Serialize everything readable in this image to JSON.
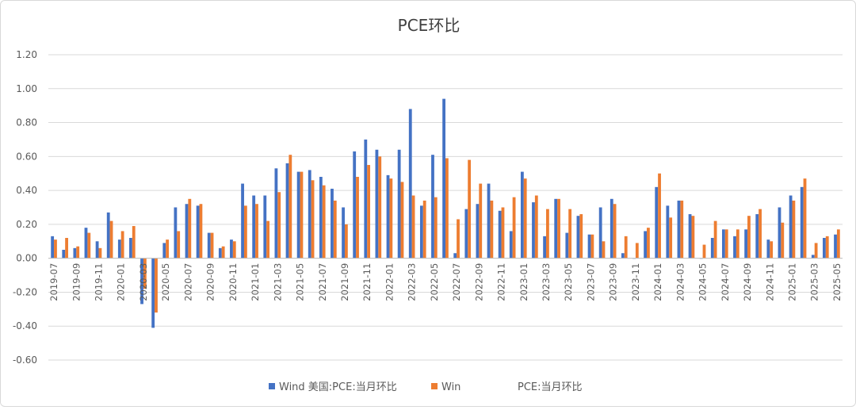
{
  "chart_data": {
    "type": "bar",
    "title": "PCE环比",
    "ylim": [
      -0.6,
      1.2
    ],
    "yticks": [
      "-0.60",
      "-0.40",
      "-0.20",
      "0.00",
      "0.20",
      "0.40",
      "0.60",
      "0.80",
      "1.00",
      "1.20"
    ],
    "grid": true,
    "legend_position": "bottom",
    "categories": [
      "2019-07",
      "2019-08",
      "2019-09",
      "2019-10",
      "2019-11",
      "2019-12",
      "2020-01",
      "2020-02",
      "2020-03",
      "2020-04",
      "2020-05",
      "2020-06",
      "2020-07",
      "2020-08",
      "2020-09",
      "2020-10",
      "2020-11",
      "2020-12",
      "2021-01",
      "2021-02",
      "2021-03",
      "2021-04",
      "2021-05",
      "2021-06",
      "2021-07",
      "2021-08",
      "2021-09",
      "2021-10",
      "2021-11",
      "2021-12",
      "2022-01",
      "2022-02",
      "2022-03",
      "2022-04",
      "2022-05",
      "2022-06",
      "2022-07",
      "2022-08",
      "2022-09",
      "2022-10",
      "2022-11",
      "2022-12",
      "2023-01",
      "2023-02",
      "2023-03",
      "2023-04",
      "2023-05",
      "2023-06",
      "2023-07",
      "2023-08",
      "2023-09",
      "2023-10",
      "2023-11",
      "2023-12",
      "2024-01",
      "2024-02",
      "2024-03",
      "2024-04",
      "2024-05",
      "2024-06",
      "2024-07",
      "2024-08",
      "2024-09",
      "2024-10",
      "2024-11",
      "2024-12",
      "2025-01",
      "2025-02",
      "2025-03",
      "2025-04",
      "2025-05"
    ],
    "xtick_labels": [
      "2019-07",
      "2019-09",
      "2019-11",
      "2020-01",
      "2020-03",
      "2020-05",
      "2020-07",
      "2020-09",
      "2020-11",
      "2021-01",
      "2021-03",
      "2021-05",
      "2021-07",
      "2021-09",
      "2021-11",
      "2022-01",
      "2022-03",
      "2022-05",
      "2022-07",
      "2022-09",
      "2022-11",
      "2023-01",
      "2023-03",
      "2023-05",
      "2023-07",
      "2023-09",
      "2023-11",
      "2024-01",
      "2024-03",
      "2024-05",
      "2024-07",
      "2024-09",
      "2024-11",
      "2025-01",
      "2025-03",
      "2025-05"
    ],
    "series": [
      {
        "name": "Wind 美国:PCE:当月环比",
        "color": "#4472c4",
        "values": [
          0.13,
          0.05,
          0.06,
          0.18,
          0.1,
          0.27,
          0.11,
          0.12,
          -0.27,
          -0.41,
          0.09,
          0.3,
          0.32,
          0.31,
          0.15,
          0.06,
          0.11,
          0.44,
          0.37,
          0.37,
          0.53,
          0.56,
          0.51,
          0.52,
          0.48,
          0.41,
          0.3,
          0.63,
          0.7,
          0.64,
          0.49,
          0.64,
          0.88,
          0.31,
          0.61,
          0.94,
          0.03,
          0.29,
          0.32,
          0.44,
          0.28,
          0.16,
          0.51,
          0.33,
          0.13,
          0.35,
          0.15,
          0.25,
          0.14,
          0.3,
          0.35,
          0.03,
          0.0,
          0.16,
          0.42,
          0.31,
          0.34,
          0.26,
          0.0,
          0.12,
          0.17,
          0.13,
          0.17,
          0.26,
          0.11,
          0.3,
          0.37,
          0.42,
          0.02,
          0.12,
          0.14
        ]
      },
      {
        "name": "Win",
        "name_visible_suffix": "PCE:当月环比",
        "color": "#ed7d31",
        "values": [
          0.11,
          0.12,
          0.07,
          0.15,
          0.06,
          0.22,
          0.16,
          0.19,
          -0.18,
          -0.32,
          0.11,
          0.16,
          0.35,
          0.32,
          0.15,
          0.07,
          0.1,
          0.31,
          0.32,
          0.22,
          0.39,
          0.61,
          0.51,
          0.46,
          0.43,
          0.34,
          0.2,
          0.48,
          0.55,
          0.6,
          0.47,
          0.45,
          0.37,
          0.34,
          0.36,
          0.59,
          0.23,
          0.58,
          0.44,
          0.34,
          0.3,
          0.36,
          0.47,
          0.37,
          0.29,
          0.35,
          0.29,
          0.26,
          0.14,
          0.1,
          0.32,
          0.13,
          0.09,
          0.18,
          0.5,
          0.24,
          0.34,
          0.25,
          0.08,
          0.22,
          0.17,
          0.17,
          0.25,
          0.29,
          0.1,
          0.21,
          0.34,
          0.47,
          0.09,
          0.13,
          0.17
        ]
      }
    ]
  }
}
